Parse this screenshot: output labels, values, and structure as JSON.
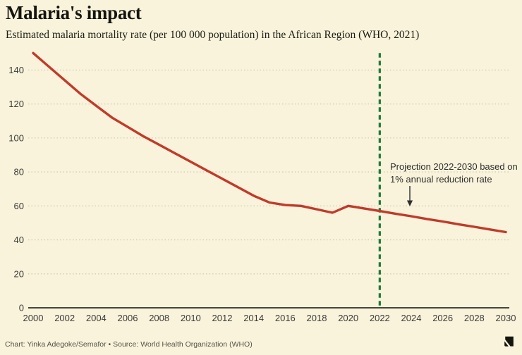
{
  "header": {
    "title": "Malaria's impact",
    "subtitle": "Estimated malaria mortality rate (per 100 000 population) in the African Region (WHO, 2021)"
  },
  "chart_data": {
    "type": "line",
    "title": "Malaria's impact",
    "subtitle": "Estimated malaria mortality rate (per 100 000 population) in the African Region (WHO, 2021)",
    "x": [
      2000,
      2001,
      2002,
      2003,
      2004,
      2005,
      2006,
      2007,
      2008,
      2009,
      2010,
      2011,
      2012,
      2013,
      2014,
      2015,
      2016,
      2017,
      2018,
      2019,
      2020,
      2021,
      2022,
      2023,
      2024,
      2025,
      2026,
      2027,
      2028,
      2029,
      2030
    ],
    "values": [
      150,
      142,
      134,
      126,
      119,
      112,
      106.5,
      101,
      96,
      91,
      86,
      81,
      76,
      71,
      66,
      62,
      60.5,
      60,
      58,
      56,
      60,
      58.5,
      57,
      55.4,
      53.9,
      52.3,
      50.8,
      49.2,
      47.7,
      46.1,
      44.6
    ],
    "xticks": [
      2000,
      2002,
      2004,
      2006,
      2008,
      2010,
      2012,
      2014,
      2016,
      2018,
      2020,
      2022,
      2024,
      2026,
      2028,
      2030
    ],
    "yticks": [
      0,
      20,
      40,
      60,
      80,
      100,
      120,
      140
    ],
    "xlim": [
      2000,
      2030
    ],
    "ylim": [
      0,
      150
    ],
    "grid": "horizontal dotted",
    "legend": "none",
    "line_color": "#c13a2b",
    "projection": {
      "start_year": 2022,
      "end_year": 2030,
      "divider_color": "#1e7a3c",
      "annotation_line1": "Projection 2022-2030 based on",
      "annotation_line2": "1% annual reduction rate"
    }
  },
  "footer": {
    "credit": "Chart: Yinka Adegoke/Semafor • Source: World Health Organization (WHO)",
    "logo": "semafor-logo"
  },
  "colors": {
    "background": "#f8f3da",
    "line": "#c13a2b",
    "projection_divider": "#1e7a3c",
    "grid": "#c8c5b2",
    "axis": "#47463d",
    "title_text": "#15150f",
    "tick_text": "#3b3b3b",
    "annotation_text": "#2e2e2e",
    "footer_text": "#56534a",
    "logo": "#141410"
  }
}
